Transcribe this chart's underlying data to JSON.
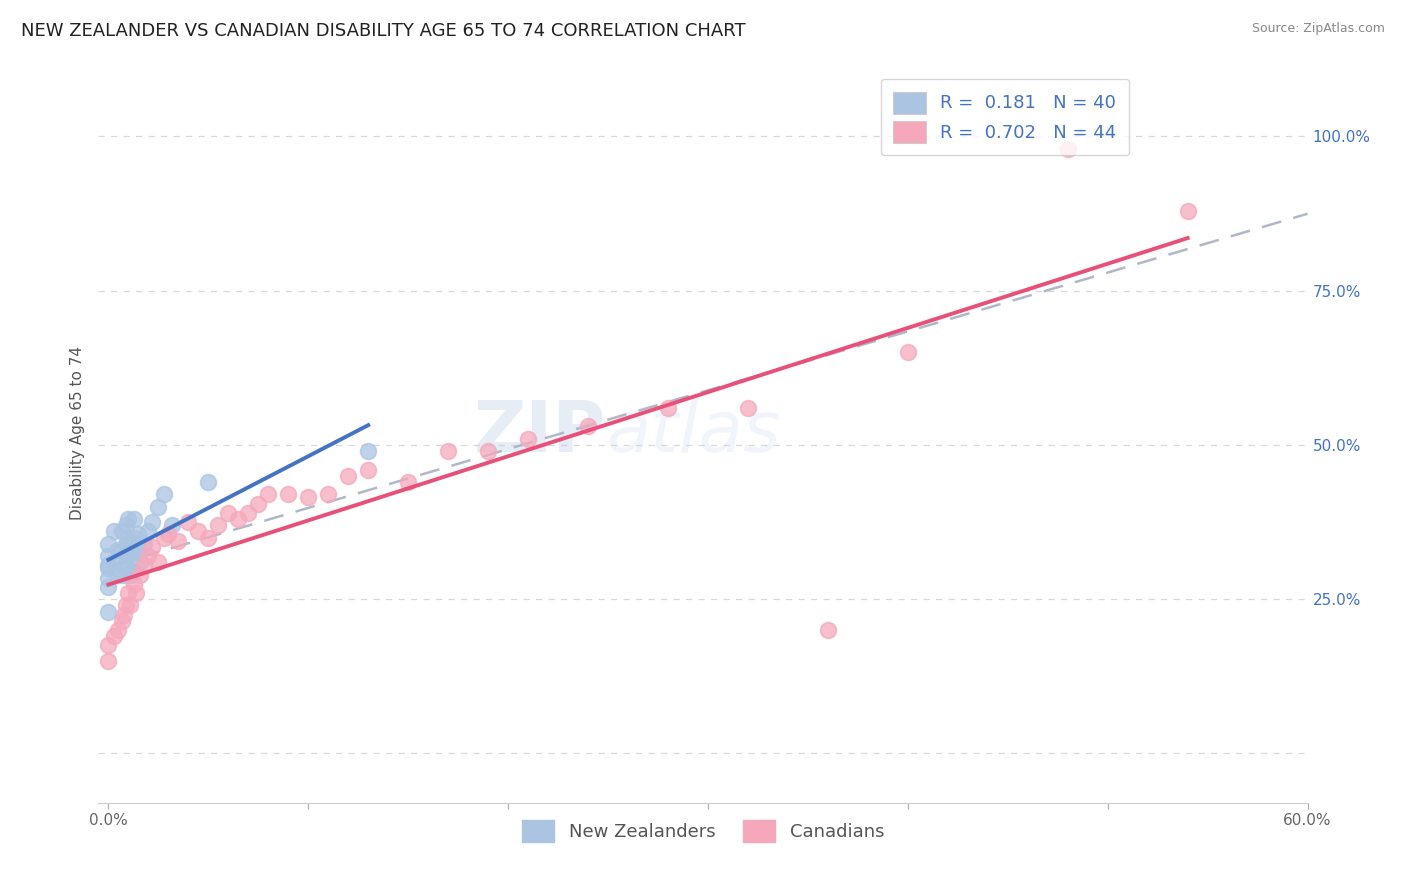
{
  "title": "NEW ZEALANDER VS CANADIAN DISABILITY AGE 65 TO 74 CORRELATION CHART",
  "source": "Source: ZipAtlas.com",
  "ylabel": "Disability Age 65 to 74",
  "xlim": [
    -0.005,
    0.6
  ],
  "ylim": [
    -0.08,
    1.12
  ],
  "xtick_pos": [
    0.0,
    0.1,
    0.2,
    0.3,
    0.4,
    0.5,
    0.6
  ],
  "xtick_labels": [
    "0.0%",
    "",
    "",
    "",
    "",
    "",
    "60.0%"
  ],
  "ytick_pos": [
    0.0,
    0.25,
    0.5,
    0.75,
    1.0
  ],
  "ytick_labels": [
    "",
    "25.0%",
    "50.0%",
    "75.0%",
    "100.0%"
  ],
  "nz_R": 0.181,
  "nz_N": 40,
  "ca_R": 0.702,
  "ca_N": 44,
  "nz_color": "#aac4e2",
  "ca_color": "#f5a8bc",
  "nz_line_color": "#4472c4",
  "ca_line_color": "#e8507a",
  "dashed_color": "#b0b8c8",
  "watermark1": "ZIP",
  "watermark2": "atlas",
  "legend_text_color": "#4472c4",
  "nz_scatter_x": [
    0.0,
    0.0,
    0.0,
    0.0,
    0.0,
    0.0,
    0.0,
    0.003,
    0.003,
    0.005,
    0.005,
    0.007,
    0.007,
    0.008,
    0.008,
    0.009,
    0.009,
    0.01,
    0.01,
    0.01,
    0.01,
    0.011,
    0.011,
    0.012,
    0.012,
    0.013,
    0.013,
    0.013,
    0.014,
    0.015,
    0.015,
    0.016,
    0.018,
    0.02,
    0.022,
    0.025,
    0.028,
    0.032,
    0.05,
    0.13
  ],
  "nz_scatter_y": [
    0.3,
    0.32,
    0.34,
    0.305,
    0.285,
    0.27,
    0.23,
    0.31,
    0.36,
    0.29,
    0.33,
    0.33,
    0.36,
    0.29,
    0.305,
    0.34,
    0.37,
    0.3,
    0.32,
    0.35,
    0.38,
    0.29,
    0.325,
    0.34,
    0.295,
    0.33,
    0.35,
    0.38,
    0.34,
    0.325,
    0.355,
    0.31,
    0.34,
    0.36,
    0.375,
    0.4,
    0.42,
    0.37,
    0.44,
    0.49
  ],
  "ca_scatter_x": [
    0.0,
    0.0,
    0.003,
    0.005,
    0.007,
    0.008,
    0.009,
    0.01,
    0.011,
    0.013,
    0.014,
    0.016,
    0.018,
    0.02,
    0.022,
    0.025,
    0.028,
    0.03,
    0.035,
    0.04,
    0.045,
    0.05,
    0.055,
    0.06,
    0.065,
    0.07,
    0.075,
    0.08,
    0.09,
    0.1,
    0.11,
    0.12,
    0.13,
    0.15,
    0.17,
    0.19,
    0.21,
    0.24,
    0.28,
    0.32,
    0.36,
    0.4,
    0.48,
    0.54
  ],
  "ca_scatter_y": [
    0.15,
    0.175,
    0.19,
    0.2,
    0.215,
    0.225,
    0.24,
    0.26,
    0.24,
    0.275,
    0.26,
    0.29,
    0.305,
    0.32,
    0.335,
    0.31,
    0.35,
    0.355,
    0.345,
    0.375,
    0.36,
    0.35,
    0.37,
    0.39,
    0.38,
    0.39,
    0.405,
    0.42,
    0.42,
    0.415,
    0.42,
    0.45,
    0.46,
    0.44,
    0.49,
    0.49,
    0.51,
    0.53,
    0.56,
    0.56,
    0.2,
    0.65,
    0.98,
    0.88
  ],
  "background_color": "#ffffff",
  "grid_color": "#d8d8d8",
  "title_fontsize": 13,
  "label_fontsize": 11,
  "tick_fontsize": 11,
  "legend_fontsize": 13
}
